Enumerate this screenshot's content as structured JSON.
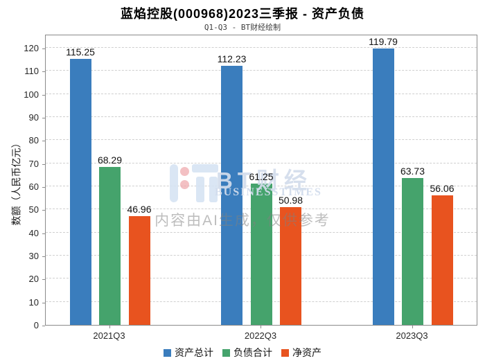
{
  "chart_data": {
    "type": "bar",
    "title": "蓝焰控股(000968)2023三季报 - 资产负债",
    "subtitle": "Q1-Q3 - BT财经绘制",
    "categories": [
      "2021Q3",
      "2022Q3",
      "2023Q3"
    ],
    "series": [
      {
        "name": "资产总计",
        "color": "#3a7dbd",
        "values": [
          115.25,
          112.23,
          119.79
        ]
      },
      {
        "name": "负债合计",
        "color": "#45a36c",
        "values": [
          68.29,
          61.25,
          63.73
        ]
      },
      {
        "name": "净资产",
        "color": "#e8531f",
        "values": [
          46.96,
          50.98,
          56.06
        ]
      }
    ],
    "xlabel": "",
    "ylabel": "数额（人民币亿元）",
    "ylim": [
      0,
      120
    ],
    "yticks": [
      0,
      10,
      20,
      30,
      40,
      50,
      60,
      70,
      80,
      90,
      100,
      110,
      120
    ],
    "grid": true,
    "legend_position": "bottom"
  },
  "watermark": {
    "brand": "BT财经",
    "brand_sub": "BUSINESSTIMES",
    "notice": "内容由AI生成，仅供参考"
  }
}
